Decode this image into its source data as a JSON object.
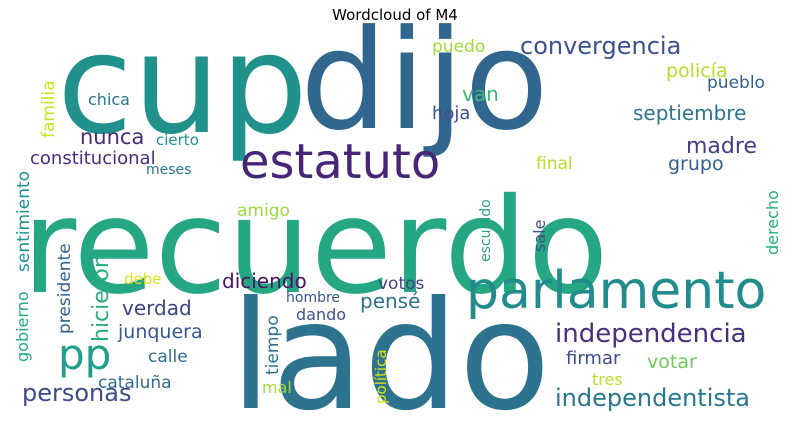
{
  "title": "Wordcloud of M4",
  "words": [
    {
      "text": "recuerdo",
      "color": "#26a784"
    },
    {
      "text": "lado",
      "color": "#2d728f"
    },
    {
      "text": "cup",
      "color": "#21918c"
    },
    {
      "text": "dijo",
      "color": "#31668e"
    },
    {
      "text": "parlamento",
      "color": "#228c8d"
    },
    {
      "text": "estatuto",
      "color": "#482677"
    },
    {
      "text": "pp",
      "color": "#1f9e89"
    },
    {
      "text": "independencia",
      "color": "#46307e"
    },
    {
      "text": "convergencia",
      "color": "#3b528b"
    },
    {
      "text": "independentista",
      "color": "#2a778e"
    },
    {
      "text": "personas",
      "color": "#3e4a89"
    },
    {
      "text": "madre",
      "color": "#433e85"
    },
    {
      "text": "hicieron",
      "color": "#27ad81"
    },
    {
      "text": "septiembre",
      "color": "#2b758e"
    },
    {
      "text": "nunca",
      "color": "#472c7a"
    },
    {
      "text": "diciendo",
      "color": "#481467"
    },
    {
      "text": "verdad",
      "color": "#404387"
    },
    {
      "text": "pensé",
      "color": "#2c718e"
    },
    {
      "text": "constitucional",
      "color": "#472d7b"
    },
    {
      "text": "grupo",
      "color": "#355f8d"
    },
    {
      "text": "junquera",
      "color": "#38588c"
    },
    {
      "text": "votar",
      "color": "#6ccd5a"
    },
    {
      "text": "firmar",
      "color": "#3d4e8a"
    },
    {
      "text": "policía",
      "color": "#b5de2b"
    },
    {
      "text": "pueblo",
      "color": "#355f8d"
    },
    {
      "text": "van",
      "color": "#3aba76"
    },
    {
      "text": "hoja",
      "color": "#3b528b"
    },
    {
      "text": "puedo",
      "color": "#a2da37"
    },
    {
      "text": "final",
      "color": "#b5de2b"
    },
    {
      "text": "cataluña",
      "color": "#2e6e8e"
    },
    {
      "text": "calle",
      "color": "#2e6d8e"
    },
    {
      "text": "votos",
      "color": "#424086"
    },
    {
      "text": "dando",
      "color": "#3a548c"
    },
    {
      "text": "amigo",
      "color": "#a0da39"
    },
    {
      "text": "presidente",
      "color": "#33628d"
    },
    {
      "text": "sentimiento",
      "color": "#20938c"
    },
    {
      "text": "familia",
      "color": "#cae11f"
    },
    {
      "text": "chica",
      "color": "#2c728e"
    },
    {
      "text": "cierto",
      "color": "#21908d"
    },
    {
      "text": "meses",
      "color": "#2b758e"
    },
    {
      "text": "escupido",
      "color": "#2ea17f"
    },
    {
      "text": "sale",
      "color": "#3c4f8a"
    },
    {
      "text": "derecho",
      "color": "#29af7f"
    },
    {
      "text": "debe",
      "color": "#dde318"
    },
    {
      "text": "hombre",
      "color": "#39568c"
    },
    {
      "text": "tiempo",
      "color": "#2e6f8e"
    },
    {
      "text": "tres",
      "color": "#bade28"
    },
    {
      "text": "mal",
      "color": "#a2da37"
    },
    {
      "text": "gobierno",
      "color": "#22a884"
    },
    {
      "text": "política",
      "color": "#d8e219"
    }
  ]
}
